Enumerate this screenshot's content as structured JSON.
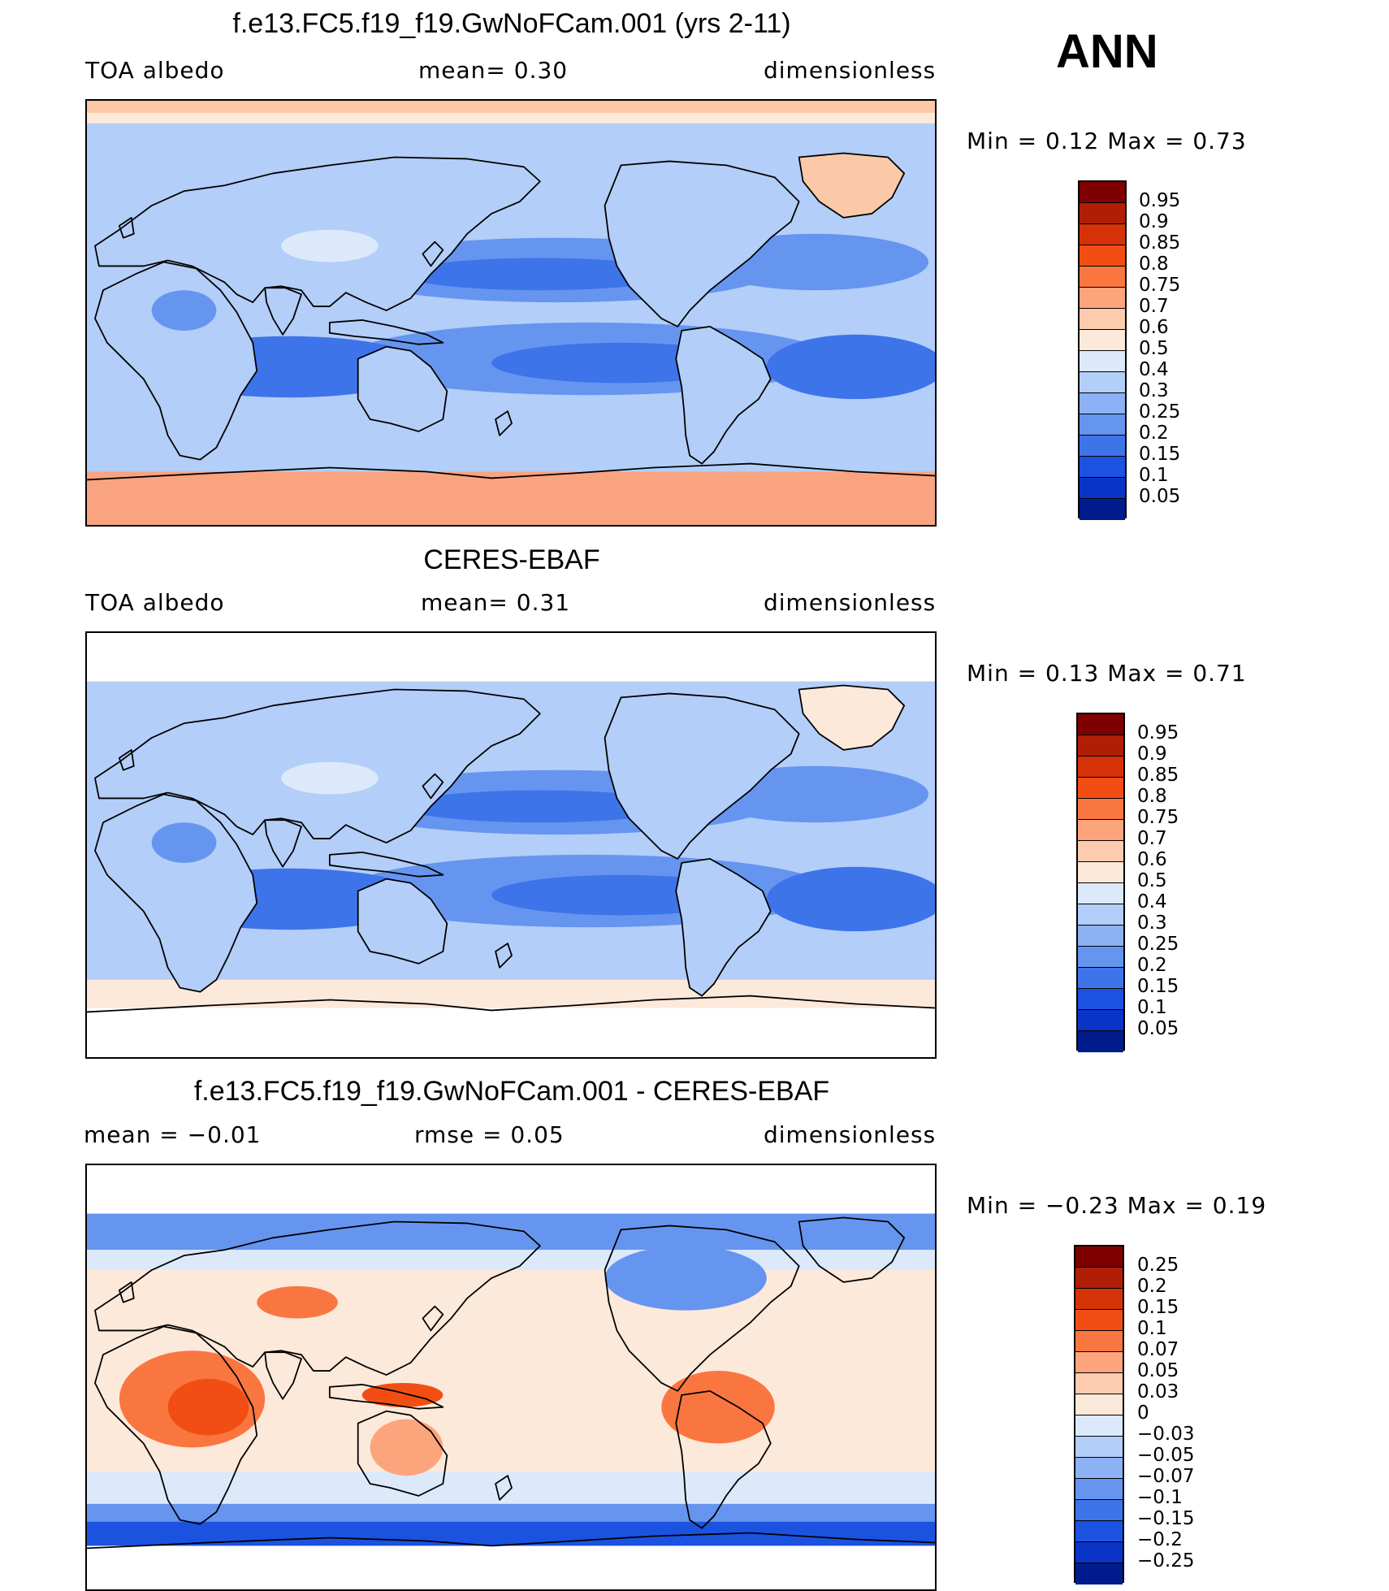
{
  "season": "ANN",
  "panels": [
    {
      "id": "model",
      "title": "f.e13.FC5.f19_f19.GwNoFCam.001 (yrs 2-11)",
      "left_label": "TOA  albedo",
      "center_label": "mean=    0.30",
      "right_label": "dimensionless",
      "minmax": "Min  =     0.12  Max  =     0.73",
      "colorbar": {
        "labels": [
          "0.95",
          "0.9",
          "0.85",
          "0.8",
          "0.75",
          "0.7",
          "0.6",
          "0.5",
          "0.4",
          "0.3",
          "0.25",
          "0.2",
          "0.15",
          "0.1",
          "0.05"
        ],
        "colors": [
          "#7f0000",
          "#b01e05",
          "#d63208",
          "#f24e14",
          "#fa7640",
          "#fca47c",
          "#fdcbae",
          "#fde9da",
          "#dbe9fb",
          "#b3cef8",
          "#8cb2f5",
          "#6695f0",
          "#3e74ea",
          "#1b52e0",
          "#0a34c8",
          "#001b8c"
        ]
      },
      "palette": {
        "ocean_base": "#b3cef8",
        "subtropic_low": "#3e74ea",
        "subtropic_mid": "#6695f0",
        "land": "#b3cef8",
        "polar_south": "#f9a381",
        "polar_north": "#fde9da",
        "greenland": "#fbc8a8",
        "highlight": "#dbe9fb"
      }
    },
    {
      "id": "obs",
      "title": "CERES-EBAF",
      "left_label": "TOA  albedo",
      "center_label": "mean=    0.31",
      "right_label": "dimensionless",
      "minmax": "Min  =     0.13  Max  =     0.71",
      "colorbar": {
        "labels": [
          "0.95",
          "0.9",
          "0.85",
          "0.8",
          "0.75",
          "0.7",
          "0.6",
          "0.5",
          "0.4",
          "0.3",
          "0.25",
          "0.2",
          "0.15",
          "0.1",
          "0.05"
        ],
        "colors": [
          "#7f0000",
          "#b01e05",
          "#d63208",
          "#f24e14",
          "#fa7640",
          "#fca47c",
          "#fdcbae",
          "#fde9da",
          "#dbe9fb",
          "#b3cef8",
          "#8cb2f5",
          "#6695f0",
          "#3e74ea",
          "#1b52e0",
          "#0a34c8",
          "#001b8c"
        ]
      },
      "palette": {
        "ocean_base": "#b3cef8",
        "subtropic_low": "#3e74ea",
        "subtropic_mid": "#6695f0",
        "land": "#b3cef8",
        "polar_south": "#fde9da",
        "polar_north": "#dbe9fb",
        "greenland": "#fde9da",
        "highlight": "#dbe9fb"
      }
    },
    {
      "id": "diff",
      "title": "f.e13.FC5.f19_f19.GwNoFCam.001 - CERES-EBAF",
      "left_label": "mean  =    −0.01",
      "center_label": "rmse  =     0.05",
      "right_label": "dimensionless",
      "minmax": "Min  =   −0.23  Max  =     0.19",
      "colorbar": {
        "labels": [
          "0.25",
          "0.2",
          "0.15",
          "0.1",
          "0.07",
          "0.05",
          "0.03",
          "0",
          "−0.03",
          "−0.05",
          "−0.07",
          "−0.1",
          "−0.15",
          "−0.2",
          "−0.25"
        ],
        "colors": [
          "#7f0000",
          "#b01e05",
          "#d63208",
          "#f24e14",
          "#fa7640",
          "#fca47c",
          "#fdcbae",
          "#fde9da",
          "#dbe9fb",
          "#b3cef8",
          "#8cb2f5",
          "#6695f0",
          "#3e74ea",
          "#1b52e0",
          "#0a34c8",
          "#001b8c"
        ]
      },
      "palette": {
        "ocean_base": "#fde9da",
        "southern_band": "#1b52e0",
        "africa": "#f24e14",
        "south_america": "#fa7640",
        "north_high": "#6695f0",
        "light_blue": "#dbe9fb",
        "polar_cap": "#ffffff"
      }
    }
  ]
}
